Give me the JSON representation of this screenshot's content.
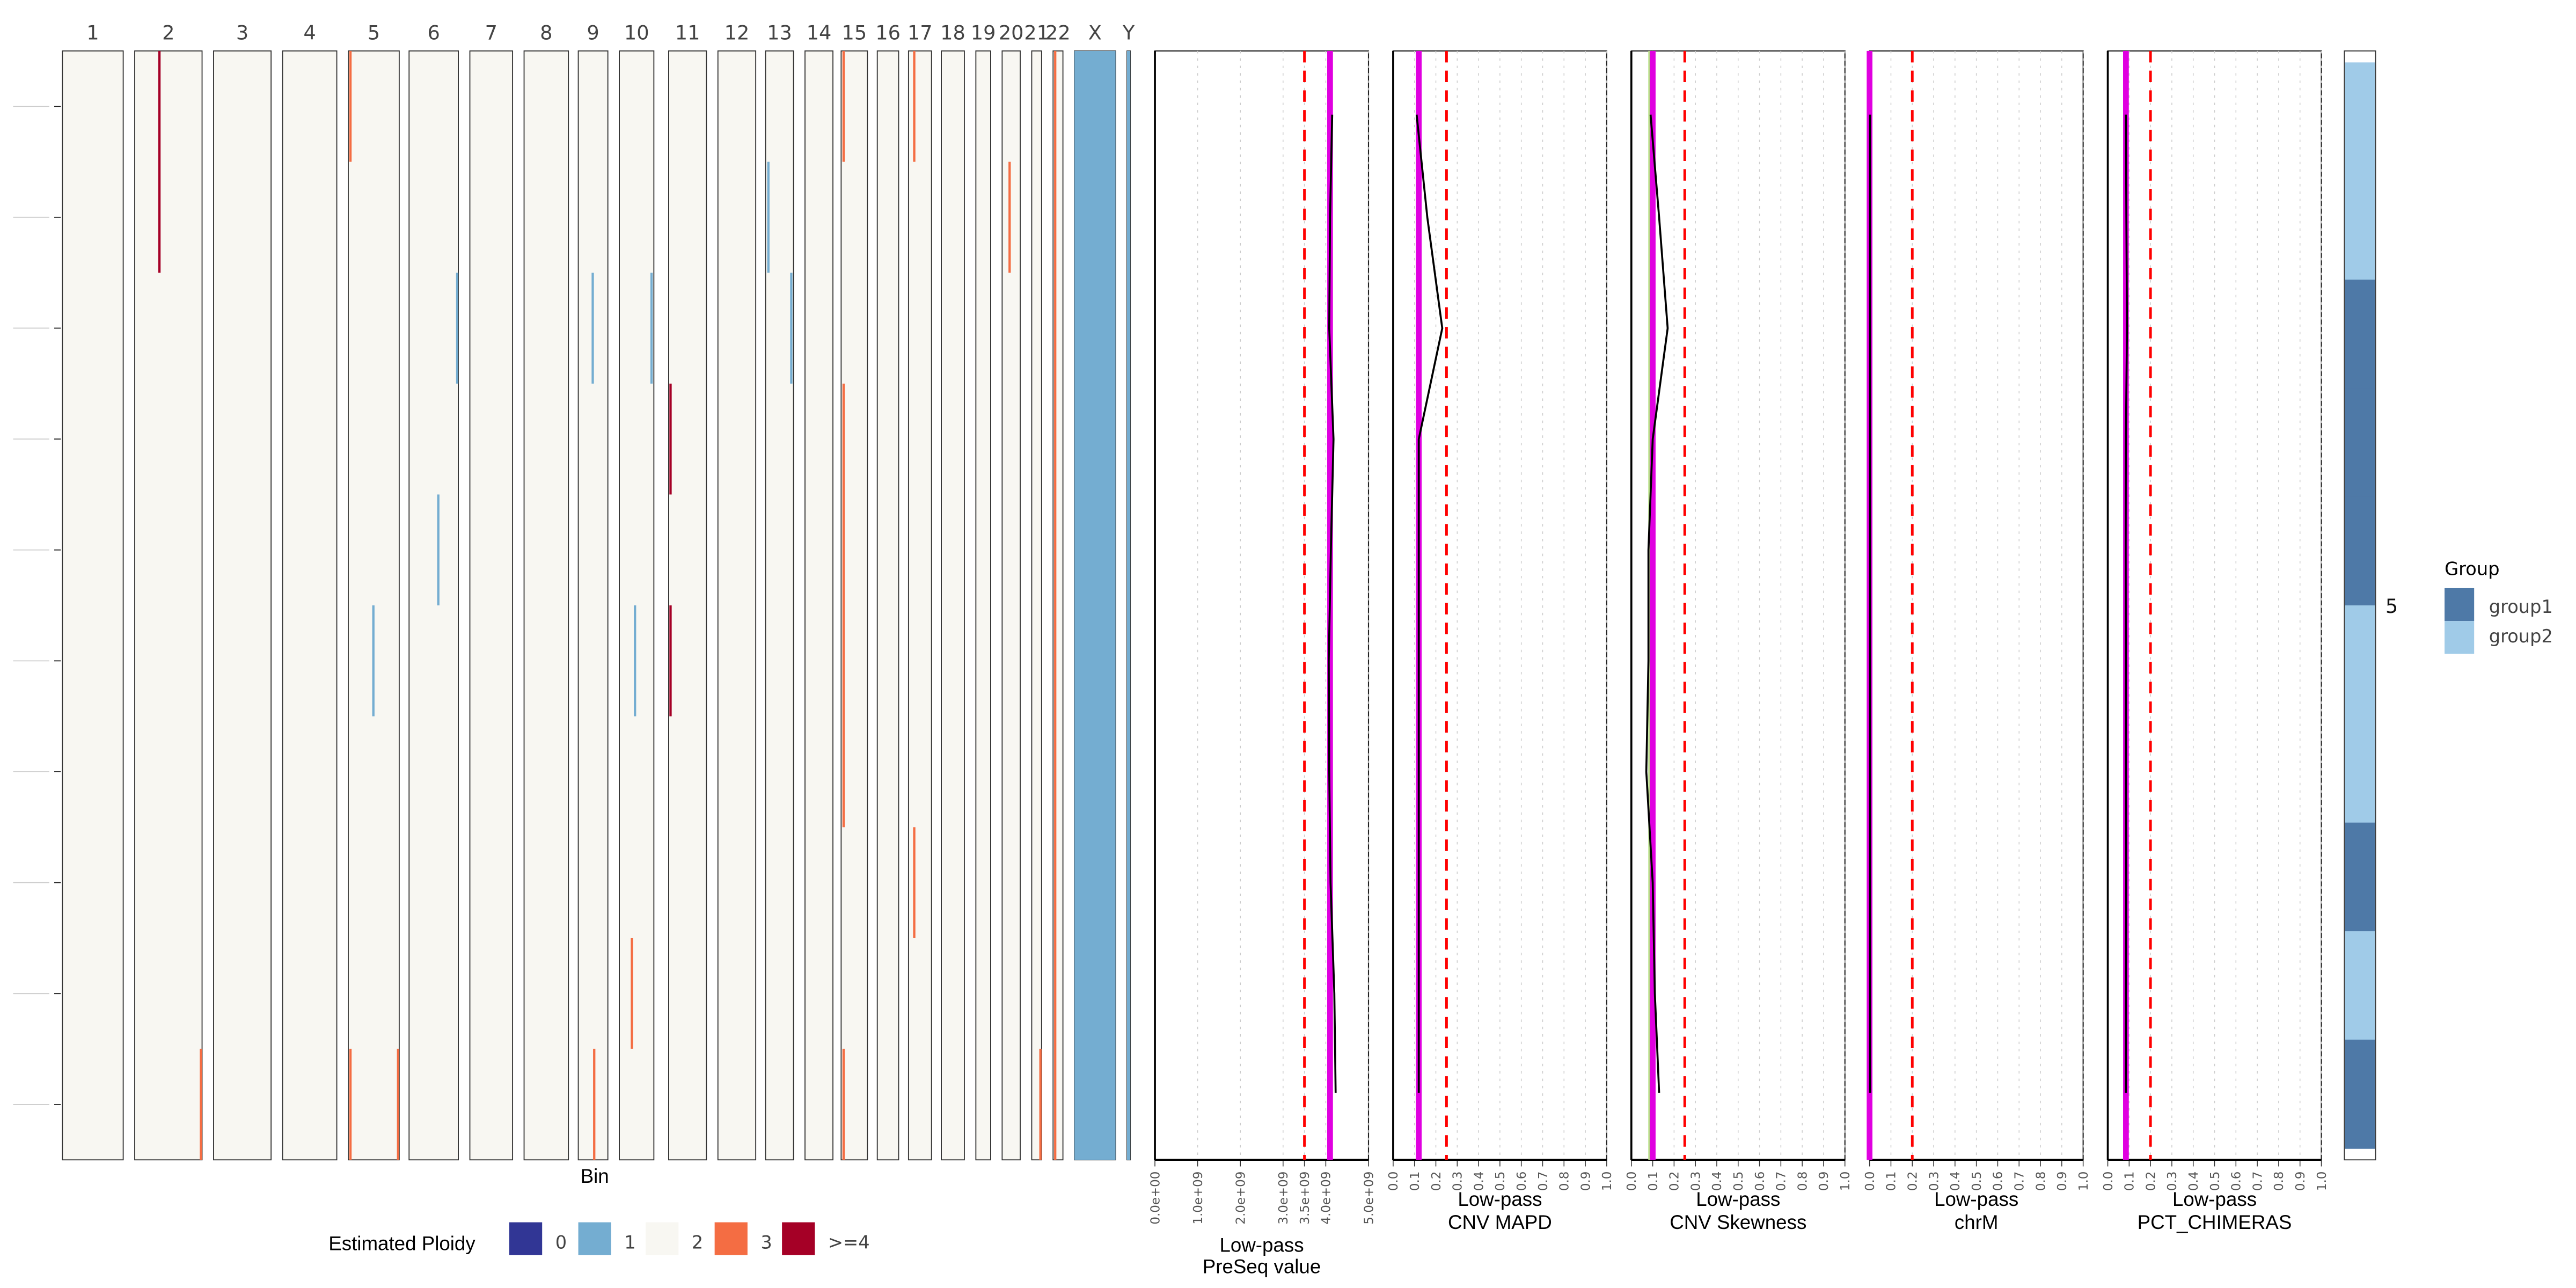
{
  "chart_data": {
    "type": "heatmap",
    "heatmap": {
      "xlabel": "Bin",
      "chromosomes": [
        "1",
        "2",
        "3",
        "4",
        "5",
        "6",
        "7",
        "8",
        "9",
        "10",
        "11",
        "12",
        "13",
        "14",
        "15",
        "16",
        "17",
        "18",
        "19",
        "20",
        "21",
        "22",
        "X",
        "Y"
      ],
      "row_count": 10,
      "baseline_ploidy": "2",
      "segments": [
        {
          "chr": "2",
          "pos": 0.35,
          "row_start": 0,
          "row_end": 2,
          "ploidy": ">=4"
        },
        {
          "chr": "2",
          "pos": 0.97,
          "row_start": 9,
          "row_end": 10,
          "ploidy": "3"
        },
        {
          "chr": "5",
          "pos": 0.02,
          "row_start": 0,
          "row_end": 1,
          "ploidy": "3"
        },
        {
          "chr": "5",
          "pos": 0.47,
          "row_start": 5,
          "row_end": 6,
          "ploidy": "1"
        },
        {
          "chr": "5",
          "pos": 0.02,
          "row_start": 9,
          "row_end": 10,
          "ploidy": "3"
        },
        {
          "chr": "5",
          "pos": 0.97,
          "row_start": 9,
          "row_end": 10,
          "ploidy": "3"
        },
        {
          "chr": "6",
          "pos": 0.97,
          "row_start": 2,
          "row_end": 3,
          "ploidy": "1"
        },
        {
          "chr": "6",
          "pos": 0.57,
          "row_start": 4,
          "row_end": 5,
          "ploidy": "1"
        },
        {
          "chr": "9",
          "pos": 0.45,
          "row_start": 2,
          "row_end": 3,
          "ploidy": "1"
        },
        {
          "chr": "9",
          "pos": 0.5,
          "row_start": 9,
          "row_end": 10,
          "ploidy": "3"
        },
        {
          "chr": "10",
          "pos": 0.9,
          "row_start": 2,
          "row_end": 3,
          "ploidy": "1"
        },
        {
          "chr": "10",
          "pos": 0.42,
          "row_start": 5,
          "row_end": 6,
          "ploidy": "1"
        },
        {
          "chr": "10",
          "pos": 0.33,
          "row_start": 8,
          "row_end": 9,
          "ploidy": "3"
        },
        {
          "chr": "11",
          "pos": 0.02,
          "row_start": 3,
          "row_end": 4,
          "ploidy": ">=4"
        },
        {
          "chr": "11",
          "pos": 0.02,
          "row_start": 5,
          "row_end": 6,
          "ploidy": ">=4"
        },
        {
          "chr": "13",
          "pos": 0.06,
          "row_start": 1,
          "row_end": 2,
          "ploidy": "1"
        },
        {
          "chr": "13",
          "pos": 0.88,
          "row_start": 2,
          "row_end": 3,
          "ploidy": "1"
        },
        {
          "chr": "15",
          "pos": 0.05,
          "row_start": 0,
          "row_end": 1,
          "ploidy": "3"
        },
        {
          "chr": "15",
          "pos": 0.05,
          "row_start": 3,
          "row_end": 7,
          "ploidy": "3"
        },
        {
          "chr": "15",
          "pos": 0.05,
          "row_start": 9,
          "row_end": 10,
          "ploidy": "3"
        },
        {
          "chr": "17",
          "pos": 0.2,
          "row_start": 0,
          "row_end": 1,
          "ploidy": "3"
        },
        {
          "chr": "17",
          "pos": 0.2,
          "row_start": 7,
          "row_end": 8,
          "ploidy": "3"
        },
        {
          "chr": "20",
          "pos": 0.35,
          "row_start": 1,
          "row_end": 2,
          "ploidy": "3"
        },
        {
          "chr": "21",
          "pos": 0.9,
          "row_start": 9,
          "row_end": 10,
          "ploidy": "3"
        },
        {
          "chr": "22",
          "pos": 0.1,
          "row_start": 0,
          "row_end": 10,
          "ploidy": "3"
        },
        {
          "chr": "X",
          "pos": 0,
          "width_frac": 1,
          "row_start": 0,
          "row_end": 10,
          "ploidy": "1"
        },
        {
          "chr": "Y",
          "pos": 0,
          "width_frac": 1,
          "row_start": 0,
          "row_end": 10,
          "ploidy": "1"
        }
      ]
    },
    "ploidy_legend": {
      "title": "Estimated Ploidy",
      "items": [
        {
          "label": "0",
          "color": "#313695"
        },
        {
          "label": "1",
          "color": "#74add1"
        },
        {
          "label": "2",
          "color": "#f8f7f2"
        },
        {
          "label": "3",
          "color": "#f46d43"
        },
        {
          "label": ">=4",
          "color": "#a50026"
        }
      ]
    },
    "qc_panels": [
      {
        "title_line1": "Low-pass",
        "title_line2": "PreSeq value",
        "xlim": [
          0,
          5000000000
        ],
        "tick_values": [
          0,
          1000000000,
          2000000000,
          3000000000,
          3500000000,
          4000000000,
          5000000000
        ],
        "tick_labels": [
          "0.0e+00",
          "1.0e+09",
          "2.0e+09",
          "3.0e+09",
          "3.5e+09",
          "4.0e+09",
          "5.0e+09"
        ],
        "threshold": 3500000000,
        "median": 4100000000,
        "values": [
          4150000000,
          4100000000,
          4080000000,
          4180000000,
          4120000000,
          4070000000,
          4080000000,
          4110000000,
          4200000000,
          4230000000
        ]
      },
      {
        "title_line1": "Low-pass",
        "title_line2": "CNV MAPD",
        "xlim": [
          0,
          1
        ],
        "tick_values": [
          0,
          0.1,
          0.2,
          0.3,
          0.4,
          0.5,
          0.6,
          0.7,
          0.8,
          0.9,
          1.0
        ],
        "tick_labels": [
          "0.0",
          "0.1",
          "0.2",
          "0.3",
          "0.4",
          "0.5",
          "0.6",
          "0.7",
          "0.8",
          "0.9",
          "1.0"
        ],
        "threshold": 0.25,
        "median": 0.12,
        "values": [
          0.11,
          0.16,
          0.23,
          0.12,
          0.12,
          0.12,
          0.12,
          0.12,
          0.12,
          0.12
        ]
      },
      {
        "title_line1": "Low-pass",
        "title_line2": "CNV Skewness",
        "xlim": [
          0,
          1
        ],
        "tick_values": [
          0,
          0.1,
          0.2,
          0.3,
          0.4,
          0.5,
          0.6,
          0.7,
          0.8,
          0.9,
          1.0
        ],
        "tick_labels": [
          "0.0",
          "0.1",
          "0.2",
          "0.3",
          "0.4",
          "0.5",
          "0.6",
          "0.7",
          "0.8",
          "0.9",
          "1.0"
        ],
        "threshold": 0.25,
        "median": 0.1,
        "secondary": 0.085,
        "secondary_color": "#b8e186",
        "values": [
          0.09,
          0.13,
          0.17,
          0.1,
          0.08,
          0.08,
          0.07,
          0.1,
          0.11,
          0.13
        ]
      },
      {
        "title_line1": "Low-pass",
        "title_line2": "chrM",
        "xlim": [
          0,
          1
        ],
        "tick_values": [
          0,
          0.1,
          0.2,
          0.3,
          0.4,
          0.5,
          0.6,
          0.7,
          0.8,
          0.9,
          1.0
        ],
        "tick_labels": [
          "0.0",
          "0.1",
          "0.2",
          "0.3",
          "0.4",
          "0.5",
          "0.6",
          "0.7",
          "0.8",
          "0.9",
          "1.0"
        ],
        "threshold": 0.2,
        "median": 0.0,
        "values": [
          0.002,
          0.002,
          0.002,
          0.002,
          0.002,
          0.002,
          0.002,
          0.002,
          0.002,
          0.002
        ]
      },
      {
        "title_line1": "Low-pass",
        "title_line2": "PCT_CHIMERAS",
        "xlim": [
          0,
          1
        ],
        "tick_values": [
          0,
          0.1,
          0.2,
          0.3,
          0.4,
          0.5,
          0.6,
          0.7,
          0.8,
          0.9,
          1.0
        ],
        "tick_labels": [
          "0.0",
          "0.1",
          "0.2",
          "0.3",
          "0.4",
          "0.5",
          "0.6",
          "0.7",
          "0.8",
          "0.9",
          "1.0"
        ],
        "threshold": 0.2,
        "median": 0.085,
        "values": [
          0.085,
          0.087,
          0.09,
          0.085,
          0.084,
          0.085,
          0.085,
          0.086,
          0.085,
          0.085
        ]
      }
    ],
    "colors": {
      "threshold": "#ff0000",
      "median": "#e000e0",
      "line": "#000000"
    },
    "group_bar": {
      "label": "5",
      "rows": [
        "group2",
        "group2",
        "group1",
        "group1",
        "group1",
        "group2",
        "group2",
        "group1",
        "group2",
        "group1"
      ]
    },
    "group_legend": {
      "title": "Group",
      "items": [
        {
          "label": "group1",
          "color": "#4e79a7"
        },
        {
          "label": "group2",
          "color": "#a0cbe8"
        }
      ]
    }
  }
}
